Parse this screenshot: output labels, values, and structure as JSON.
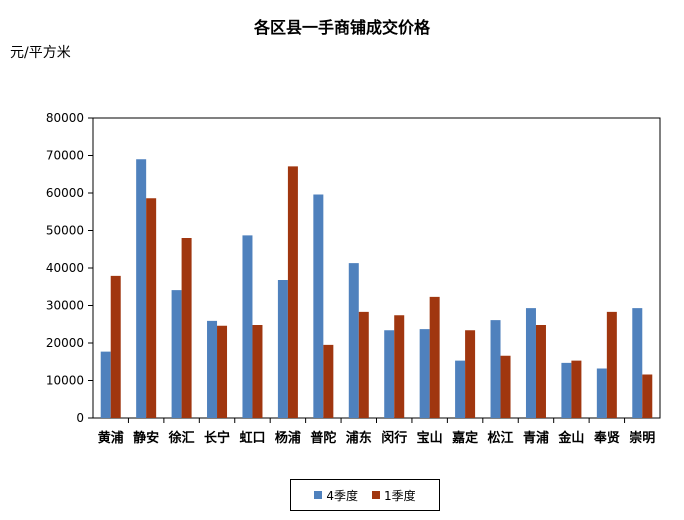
{
  "chart_data": {
    "type": "bar",
    "title": "各区县一手商铺成交价格",
    "ylabel": "元/平方米",
    "xlabel": "",
    "ylim": [
      0,
      80000
    ],
    "yticks": [
      0,
      10000,
      20000,
      30000,
      40000,
      50000,
      60000,
      70000,
      80000
    ],
    "grid": false,
    "legend": "bottom",
    "categories": [
      "黄浦",
      "静安",
      "徐汇",
      "长宁",
      "虹口",
      "杨浦",
      "普陀",
      "浦东",
      "闵行",
      "宝山",
      "嘉定",
      "松江",
      "青浦",
      "金山",
      "奉贤",
      "崇明"
    ],
    "series": [
      {
        "name": "4季度",
        "color": "#4F81BD",
        "values": [
          17700,
          69000,
          34100,
          25900,
          48700,
          36800,
          59600,
          41300,
          23400,
          23700,
          15300,
          26100,
          29300,
          14700,
          13200,
          29300
        ]
      },
      {
        "name": "1季度",
        "color": "#A0360F",
        "values": [
          37900,
          58600,
          48000,
          24600,
          24800,
          67100,
          19500,
          28300,
          27400,
          32300,
          23400,
          16600,
          24800,
          15300,
          28300,
          11600
        ]
      }
    ]
  }
}
